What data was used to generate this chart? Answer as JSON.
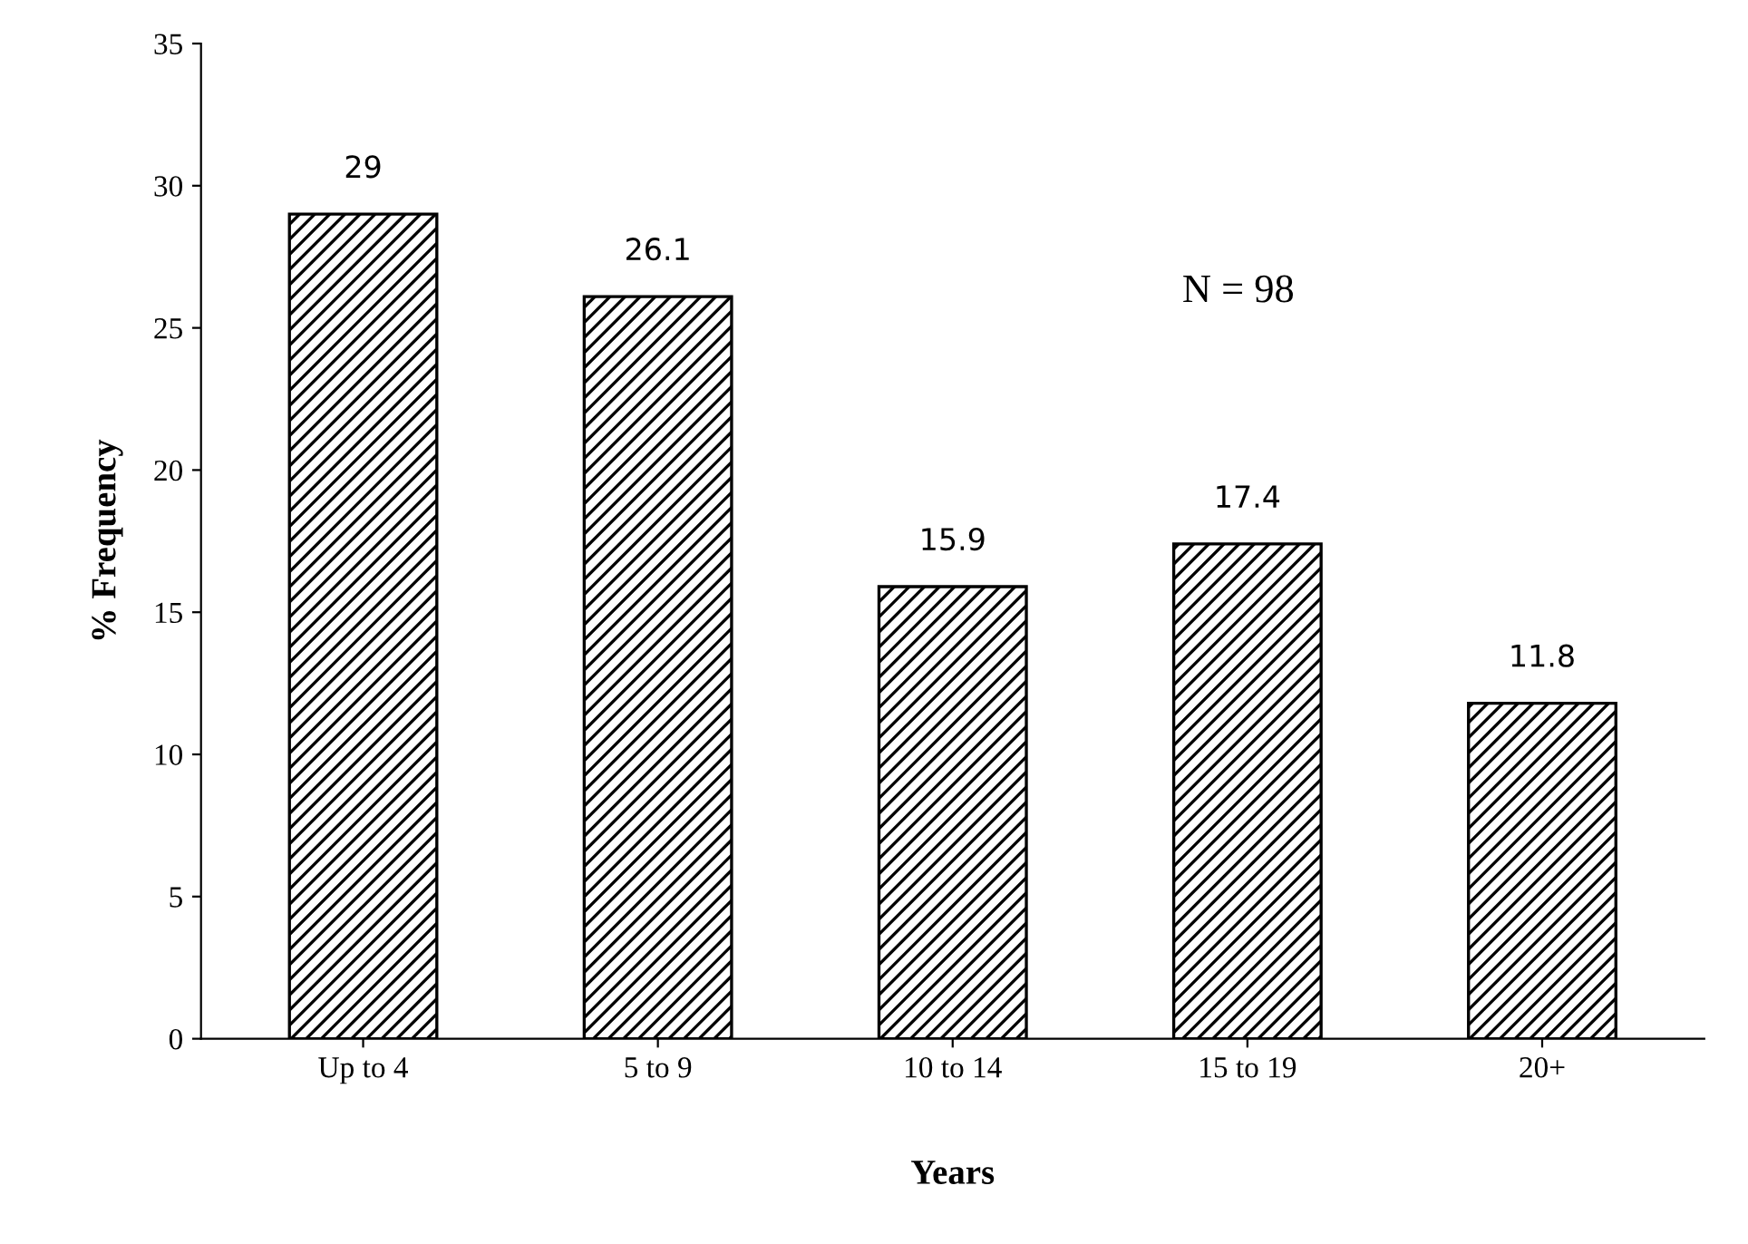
{
  "chart_data": {
    "type": "bar",
    "xlabel": "Years",
    "ylabel": "% Frequency",
    "categories": [
      "Up to 4",
      "5 to 9",
      "10 to 14",
      "15 to 19",
      "20+"
    ],
    "values": [
      29,
      26.1,
      15.9,
      17.4,
      11.8
    ],
    "color": "#000000",
    "data_labels": true,
    "ylim": [
      0,
      35
    ],
    "yticks": [
      0,
      5,
      10,
      15,
      20,
      25,
      30,
      35
    ],
    "grid": false,
    "legend": false,
    "annotations": [
      "N = 98"
    ]
  }
}
